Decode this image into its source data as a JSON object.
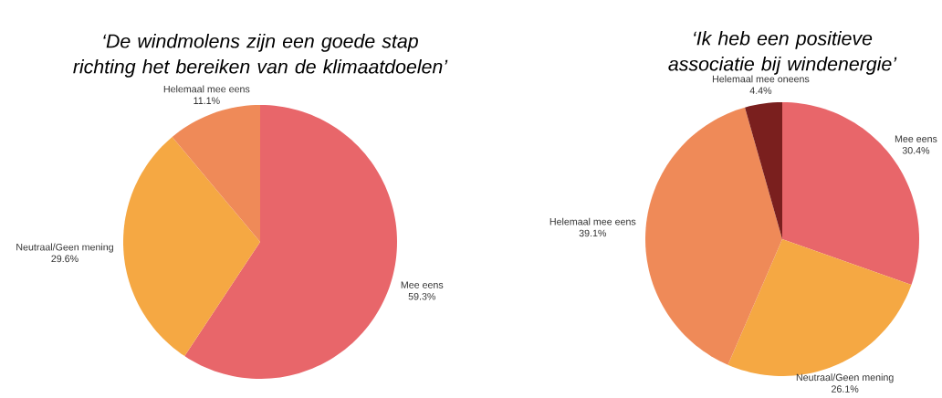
{
  "chart_data": [
    {
      "type": "pie",
      "title": "‘De windmolens zijn een goede stap richting het bereiken van de klimaatdoelen’",
      "categories": [
        "Mee eens",
        "Neutraal/Geen mening",
        "Helemaal mee eens"
      ],
      "values": [
        59.3,
        29.6,
        11.1
      ],
      "colors": [
        "#e8666a",
        "#f5a843",
        "#ef8a58"
      ],
      "value_labels": [
        "59.3%",
        "29.6%",
        "11.1%"
      ]
    },
    {
      "type": "pie",
      "title": "‘Ik heb een positieve associatie bij windenergie’",
      "categories": [
        "Mee eens",
        "Neutraal/Geen mening",
        "Helemaal mee eens",
        "Helemaal mee oneens"
      ],
      "values": [
        30.4,
        26.1,
        39.1,
        4.4
      ],
      "colors": [
        "#e8666a",
        "#f5a843",
        "#ef8a58",
        "#7a1f1e"
      ],
      "value_labels": [
        "30.4%",
        "26.1%",
        "39.1%",
        "4.4%"
      ]
    }
  ]
}
